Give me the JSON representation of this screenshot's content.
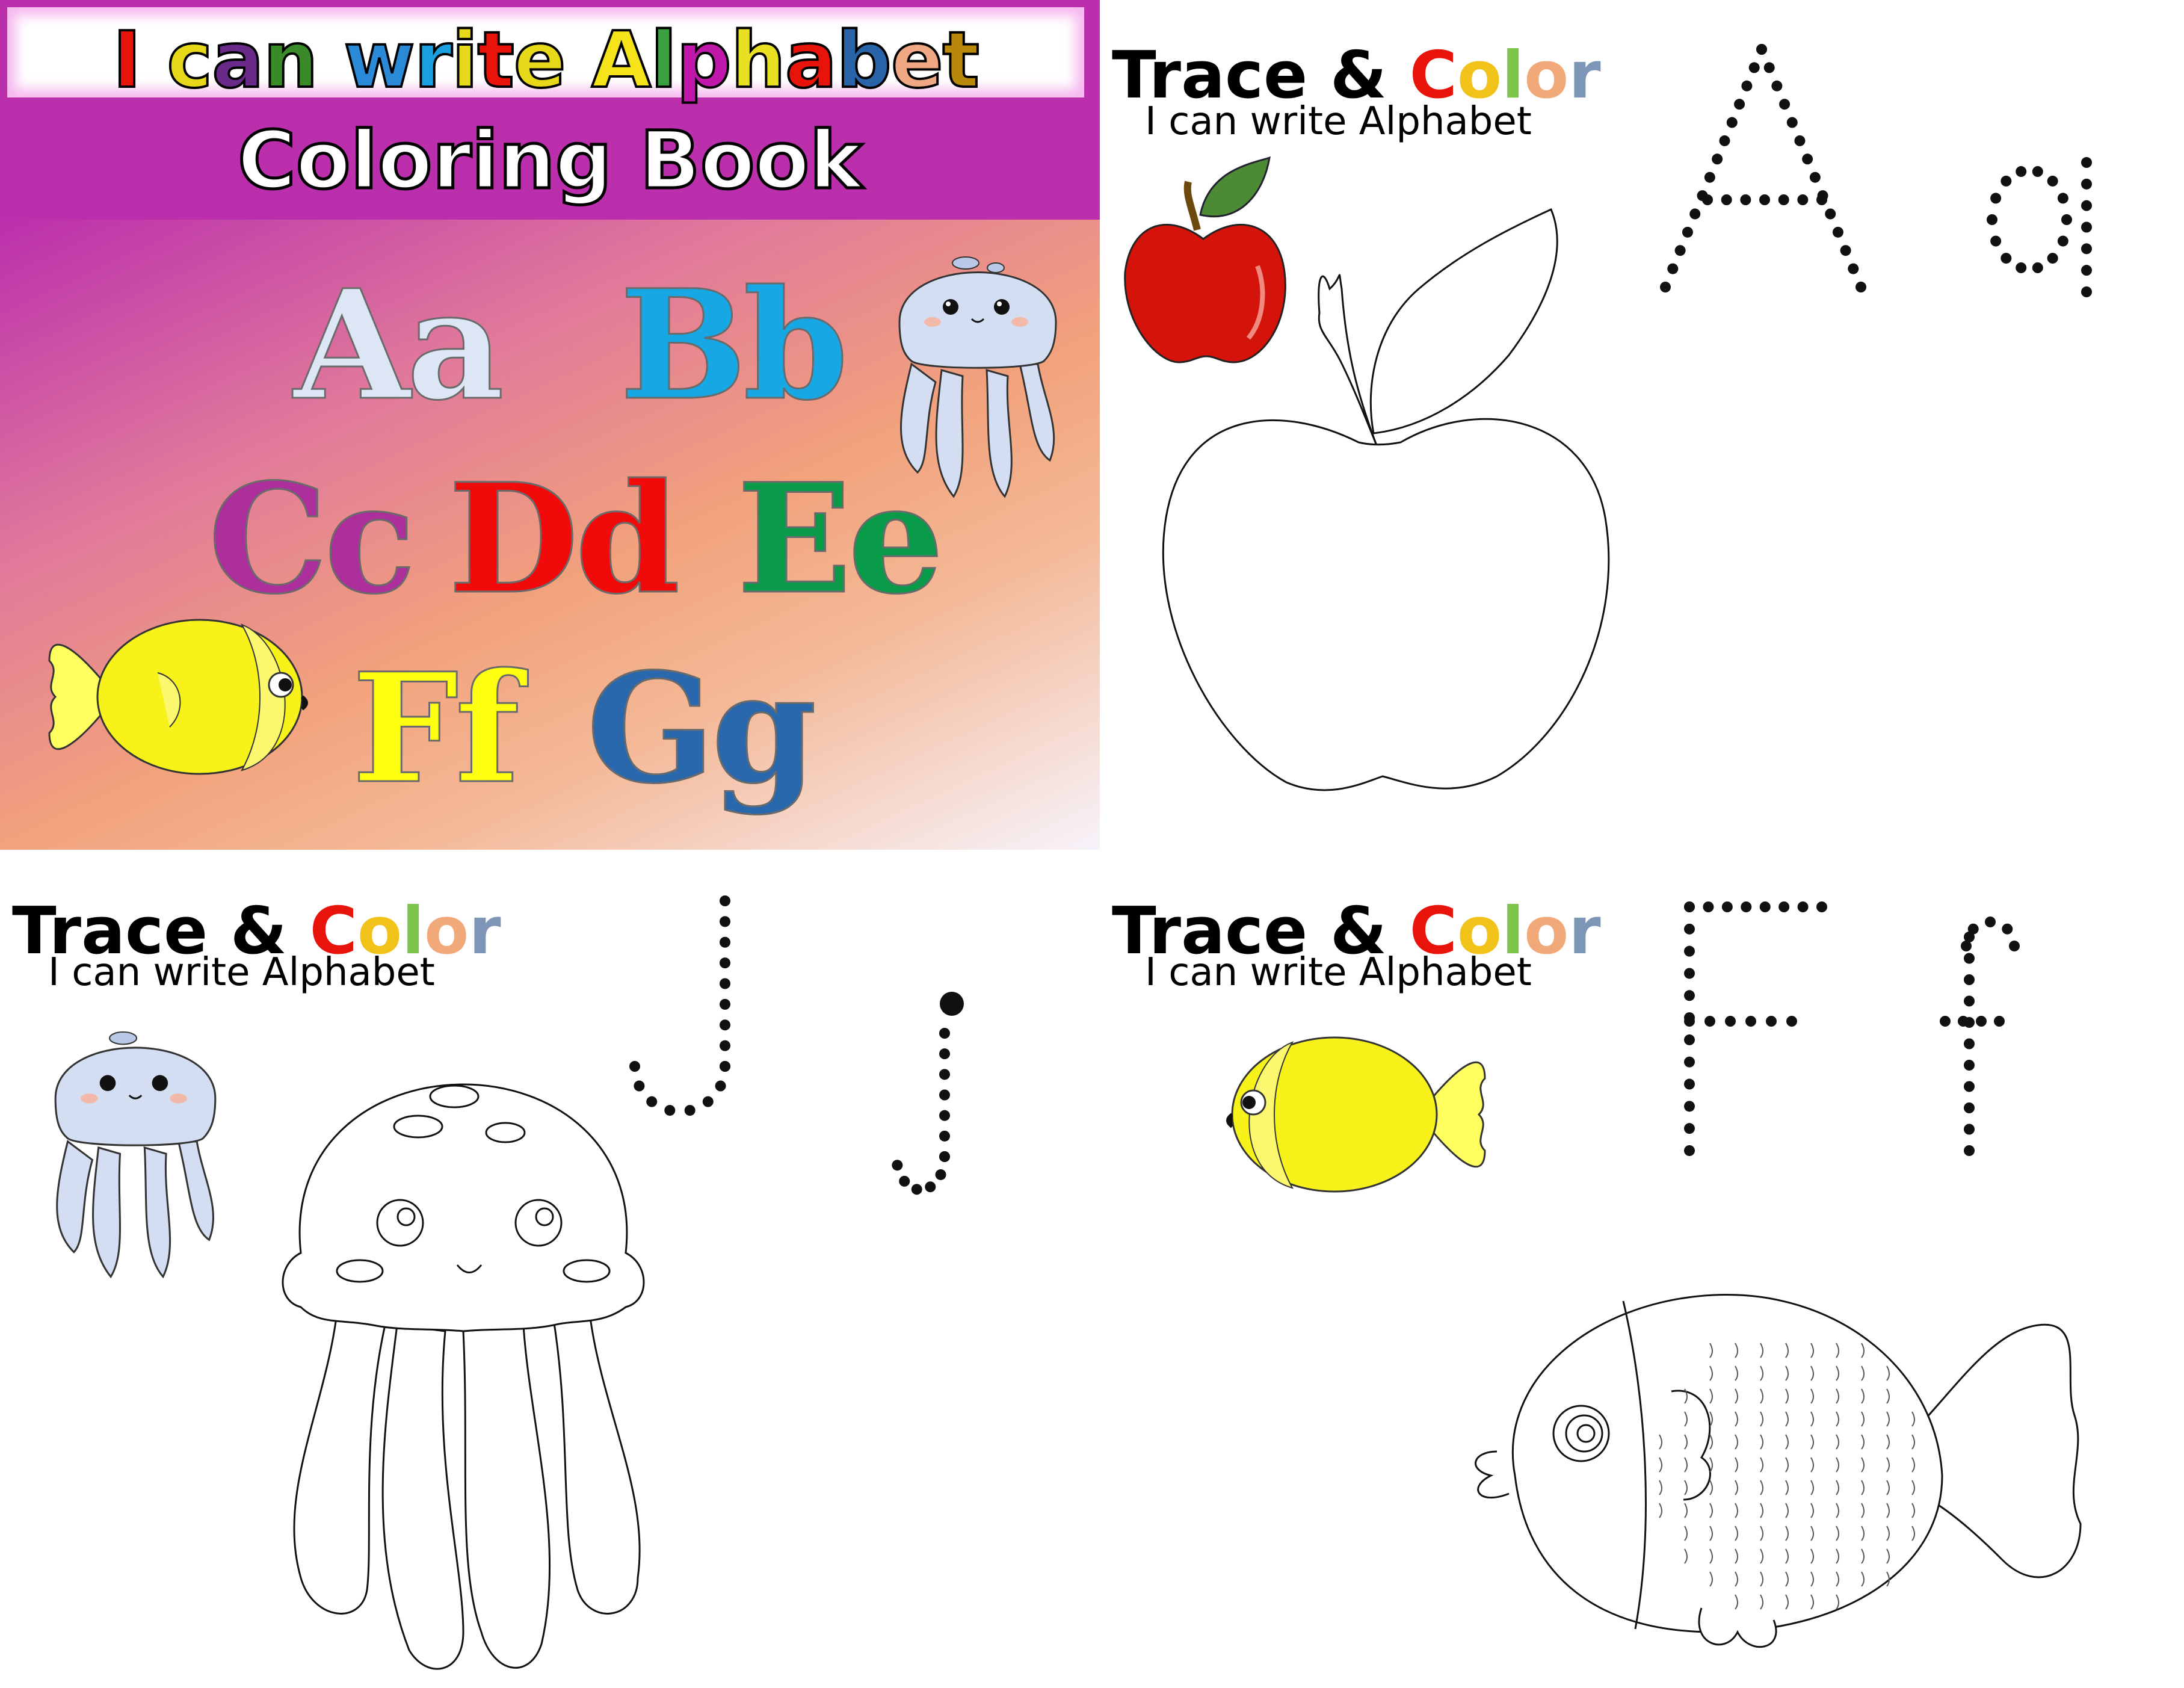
{
  "cover": {
    "title_letters": [
      {
        "ch": "I",
        "color": "#e8140c"
      },
      {
        "ch": " ",
        "color": "#000000"
      },
      {
        "ch": "c",
        "color": "#e8d81a"
      },
      {
        "ch": "a",
        "color": "#6a2a8a"
      },
      {
        "ch": "n",
        "color": "#3a8a2a"
      },
      {
        "ch": " ",
        "color": "#000000"
      },
      {
        "ch": "w",
        "color": "#2a8ad8"
      },
      {
        "ch": "r",
        "color": "#1aa0e0"
      },
      {
        "ch": "i",
        "color": "#e8d81a"
      },
      {
        "ch": "t",
        "color": "#e8140c"
      },
      {
        "ch": "e",
        "color": "#e8d81a"
      },
      {
        "ch": " ",
        "color": "#000000"
      },
      {
        "ch": "A",
        "color": "#f6e31a"
      },
      {
        "ch": "l",
        "color": "#3aa040"
      },
      {
        "ch": "p",
        "color": "#c018a8"
      },
      {
        "ch": "h",
        "color": "#e8e020"
      },
      {
        "ch": "a",
        "color": "#e8140c"
      },
      {
        "ch": "b",
        "color": "#2a64a8"
      },
      {
        "ch": "e",
        "color": "#f0a884"
      },
      {
        "ch": "t",
        "color": "#b8880a"
      }
    ],
    "subtitle": "Coloring Book",
    "letters": [
      {
        "text": "Aa",
        "color": "#dce6f5"
      },
      {
        "text": "Bb",
        "color": "#16a7e4"
      },
      {
        "text": "Cc",
        "color": "#ad2f9c"
      },
      {
        "text": "Dd",
        "color": "#f20a0a"
      },
      {
        "text": "Ee",
        "color": "#0a9b4a"
      },
      {
        "text": "Ff",
        "color": "#ffff10"
      },
      {
        "text": "Gg",
        "color": "#2a68ae"
      }
    ]
  },
  "worksheets": [
    {
      "title_word": "Trace &",
      "color_word": [
        "C",
        "o",
        "l",
        "o",
        "r"
      ],
      "subtitle": "I can write Alphabet",
      "trace_letters": [
        "A",
        "a"
      ],
      "picture": "apple"
    },
    {
      "title_word": "Trace &",
      "color_word": [
        "C",
        "o",
        "l",
        "o",
        "r"
      ],
      "subtitle": "I can write Alphabet",
      "trace_letters": [
        "J",
        "j"
      ],
      "picture": "jellyfish"
    },
    {
      "title_word": "Trace &",
      "color_word": [
        "C",
        "o",
        "l",
        "o",
        "r"
      ],
      "subtitle": "I can write Alphabet",
      "trace_letters": [
        "F",
        "f"
      ],
      "picture": "fish"
    }
  ]
}
